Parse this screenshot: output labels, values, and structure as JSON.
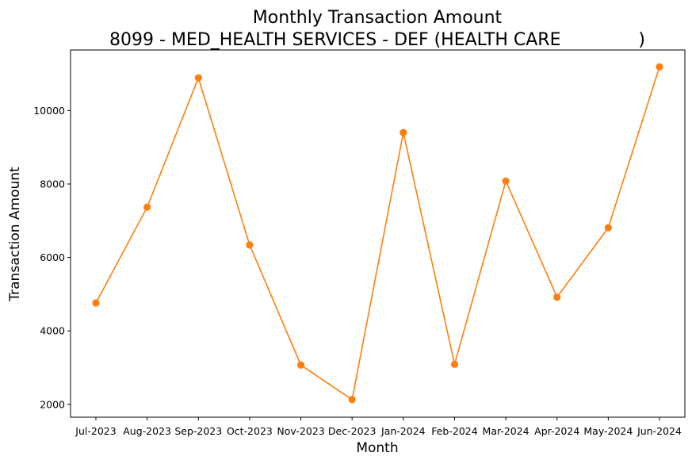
{
  "chart_data": {
    "type": "line",
    "title": "Monthly Transaction Amount",
    "subtitle": "8099 - MED_HEALTH SERVICES - DEF (HEALTH CARE              )",
    "xlabel": "Month",
    "ylabel": "Transaction Amount",
    "categories": [
      "Jul-2023",
      "Aug-2023",
      "Sep-2023",
      "Oct-2023",
      "Nov-2023",
      "Dec-2023",
      "Jan-2024",
      "Feb-2024",
      "Mar-2024",
      "Apr-2024",
      "May-2024",
      "Jun-2024"
    ],
    "series": [
      {
        "values": [
          4760,
          7370,
          10890,
          6340,
          3070,
          2130,
          9400,
          3090,
          8080,
          4920,
          6810,
          11190
        ],
        "color": "#ff7f0e",
        "marker": "circle"
      }
    ],
    "yticks": [
      2000,
      4000,
      6000,
      8000,
      10000
    ],
    "ytick_labels": [
      "2000",
      "4000",
      "6000",
      "8000",
      "10000"
    ],
    "ylim": [
      1650,
      11650
    ],
    "grid": false,
    "legend": "none"
  }
}
